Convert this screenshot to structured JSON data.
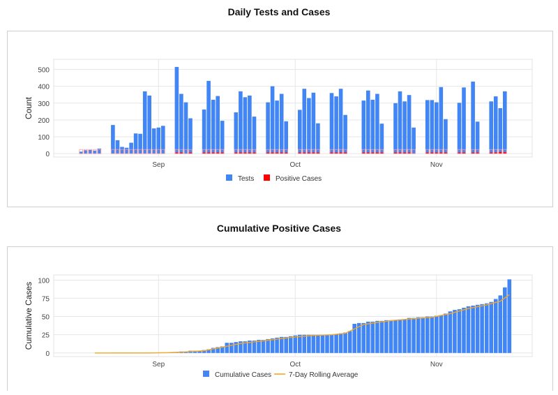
{
  "charts": [
    {
      "title": "Daily Tests and Cases"
    },
    {
      "title": "Cumulative Positive Cases"
    }
  ],
  "chart_data": [
    {
      "type": "bar",
      "title": "Daily Tests and Cases",
      "xlabel": "",
      "ylabel": "Count",
      "ylim": [
        -20,
        560
      ],
      "yticks": [
        0,
        100,
        200,
        300,
        400,
        500
      ],
      "x_tick_labels": [
        {
          "label": "Sep",
          "day": 22
        },
        {
          "label": "Oct",
          "day": 52
        },
        {
          "label": "Nov",
          "day": 83
        }
      ],
      "grid": true,
      "legend_position": "bottom",
      "series": [
        {
          "name": "Tests",
          "color": "#4285F4",
          "values": [
            [
              5,
              12
            ],
            [
              6,
              20
            ],
            [
              7,
              22
            ],
            [
              8,
              18
            ],
            [
              9,
              30
            ],
            [
              12,
              170
            ],
            [
              13,
              80
            ],
            [
              14,
              40
            ],
            [
              15,
              35
            ],
            [
              16,
              65
            ],
            [
              17,
              120
            ],
            [
              18,
              118
            ],
            [
              19,
              370
            ],
            [
              20,
              345
            ],
            [
              21,
              150
            ],
            [
              22,
              155
            ],
            [
              23,
              165
            ],
            [
              26,
              515
            ],
            [
              27,
              355
            ],
            [
              28,
              305
            ],
            [
              29,
              210
            ],
            [
              32,
              262
            ],
            [
              33,
              432
            ],
            [
              34,
              320
            ],
            [
              35,
              342
            ],
            [
              36,
              195
            ],
            [
              39,
              245
            ],
            [
              40,
              370
            ],
            [
              41,
              335
            ],
            [
              42,
              345
            ],
            [
              43,
              220
            ],
            [
              46,
              305
            ],
            [
              47,
              400
            ],
            [
              48,
              315
            ],
            [
              49,
              355
            ],
            [
              50,
              192
            ],
            [
              53,
              260
            ],
            [
              54,
              385
            ],
            [
              55,
              330
            ],
            [
              56,
              362
            ],
            [
              57,
              180
            ],
            [
              60,
              360
            ],
            [
              61,
              340
            ],
            [
              62,
              385
            ],
            [
              63,
              230
            ],
            [
              67,
              315
            ],
            [
              68,
              375
            ],
            [
              69,
              320
            ],
            [
              70,
              355
            ],
            [
              71,
              178
            ],
            [
              74,
              300
            ],
            [
              75,
              370
            ],
            [
              76,
              310
            ],
            [
              77,
              348
            ],
            [
              78,
              155
            ],
            [
              81,
              318
            ],
            [
              82,
              318
            ],
            [
              83,
              305
            ],
            [
              84,
              395
            ],
            [
              85,
              205
            ],
            [
              88,
              302
            ],
            [
              89,
              393
            ],
            [
              91,
              428
            ],
            [
              92,
              190
            ],
            [
              95,
              310
            ],
            [
              96,
              340
            ],
            [
              97,
              270
            ],
            [
              98,
              370
            ]
          ]
        },
        {
          "name": "Positive Cases",
          "color": "#FF0000",
          "values": [
            [
              5,
              0
            ],
            [
              6,
              0
            ],
            [
              7,
              0
            ],
            [
              8,
              0
            ],
            [
              9,
              0
            ],
            [
              12,
              0
            ],
            [
              13,
              0
            ],
            [
              14,
              0
            ],
            [
              15,
              0
            ],
            [
              16,
              0
            ],
            [
              17,
              0
            ],
            [
              18,
              0
            ],
            [
              19,
              0
            ],
            [
              20,
              0
            ],
            [
              21,
              0
            ],
            [
              22,
              0
            ],
            [
              23,
              0
            ],
            [
              26,
              1
            ],
            [
              27,
              1
            ],
            [
              28,
              0
            ],
            [
              29,
              1
            ],
            [
              32,
              1
            ],
            [
              33,
              1
            ],
            [
              34,
              2
            ],
            [
              35,
              1
            ],
            [
              36,
              1
            ],
            [
              39,
              1
            ],
            [
              40,
              1
            ],
            [
              41,
              1
            ],
            [
              42,
              2
            ],
            [
              43,
              1
            ],
            [
              46,
              1
            ],
            [
              47,
              1
            ],
            [
              48,
              1
            ],
            [
              49,
              1
            ],
            [
              50,
              1
            ],
            [
              53,
              1
            ],
            [
              54,
              1
            ],
            [
              55,
              1
            ],
            [
              56,
              1
            ],
            [
              57,
              1
            ],
            [
              60,
              1
            ],
            [
              61,
              1
            ],
            [
              62,
              6
            ],
            [
              63,
              3
            ],
            [
              67,
              1
            ],
            [
              68,
              2
            ],
            [
              69,
              1
            ],
            [
              70,
              1
            ],
            [
              71,
              1
            ],
            [
              74,
              1
            ],
            [
              75,
              1
            ],
            [
              76,
              1
            ],
            [
              77,
              1
            ],
            [
              78,
              0
            ],
            [
              81,
              1
            ],
            [
              82,
              2
            ],
            [
              83,
              3
            ],
            [
              84,
              4
            ],
            [
              85,
              1
            ],
            [
              88,
              1
            ],
            [
              89,
              2
            ],
            [
              91,
              1
            ],
            [
              92,
              1
            ],
            [
              95,
              2
            ],
            [
              96,
              5
            ],
            [
              97,
              10
            ],
            [
              98,
              8
            ]
          ]
        }
      ]
    },
    {
      "type": "bar",
      "title": "Cumulative Positive Cases",
      "xlabel": "",
      "ylabel": "Cumulative Cases",
      "ylim": [
        -5,
        107
      ],
      "yticks": [
        0,
        25,
        50,
        75,
        100
      ],
      "x_tick_labels": [
        {
          "label": "Sep",
          "day": 22
        },
        {
          "label": "Oct",
          "day": 52
        },
        {
          "label": "Nov",
          "day": 83
        }
      ],
      "grid": true,
      "legend_position": "bottom",
      "series": [
        {
          "name": "Cumulative Cases",
          "color": "#4285F4",
          "values": [
            [
              12,
              0
            ],
            [
              13,
              0
            ],
            [
              14,
              0
            ],
            [
              15,
              0
            ],
            [
              16,
              0
            ],
            [
              17,
              0
            ],
            [
              18,
              0
            ],
            [
              19,
              0
            ],
            [
              20,
              0
            ],
            [
              21,
              0
            ],
            [
              22,
              0
            ],
            [
              23,
              0
            ],
            [
              24,
              0
            ],
            [
              25,
              0
            ],
            [
              26,
              1
            ],
            [
              27,
              2
            ],
            [
              28,
              2
            ],
            [
              29,
              3
            ],
            [
              30,
              3
            ],
            [
              31,
              3
            ],
            [
              32,
              4
            ],
            [
              33,
              5
            ],
            [
              34,
              7
            ],
            [
              35,
              8
            ],
            [
              36,
              9
            ],
            [
              37,
              14
            ],
            [
              38,
              14
            ],
            [
              39,
              15
            ],
            [
              40,
              16
            ],
            [
              41,
              16
            ],
            [
              42,
              17
            ],
            [
              43,
              17
            ],
            [
              44,
              18
            ],
            [
              45,
              18
            ],
            [
              46,
              19
            ],
            [
              47,
              20
            ],
            [
              48,
              21
            ],
            [
              49,
              22
            ],
            [
              50,
              22
            ],
            [
              51,
              23
            ],
            [
              52,
              24
            ],
            [
              53,
              25
            ],
            [
              54,
              25
            ],
            [
              55,
              25
            ],
            [
              56,
              25
            ],
            [
              57,
              25
            ],
            [
              58,
              25
            ],
            [
              59,
              25
            ],
            [
              60,
              25
            ],
            [
              61,
              26
            ],
            [
              62,
              27
            ],
            [
              63,
              28
            ],
            [
              64,
              30
            ],
            [
              65,
              40
            ],
            [
              66,
              41
            ],
            [
              67,
              41
            ],
            [
              68,
              43
            ],
            [
              69,
              43
            ],
            [
              70,
              44
            ],
            [
              71,
              44
            ],
            [
              72,
              45
            ],
            [
              73,
              45
            ],
            [
              74,
              45
            ],
            [
              75,
              46
            ],
            [
              76,
              46
            ],
            [
              77,
              48
            ],
            [
              78,
              48
            ],
            [
              79,
              49
            ],
            [
              80,
              49
            ],
            [
              81,
              50
            ],
            [
              82,
              50
            ],
            [
              83,
              51
            ],
            [
              84,
              52
            ],
            [
              85,
              54
            ],
            [
              86,
              57
            ],
            [
              87,
              59
            ],
            [
              88,
              60
            ],
            [
              89,
              62
            ],
            [
              90,
              64
            ],
            [
              91,
              65
            ],
            [
              92,
              66
            ],
            [
              93,
              67
            ],
            [
              94,
              68
            ],
            [
              95,
              70
            ],
            [
              96,
              74
            ],
            [
              97,
              79
            ],
            [
              98,
              90
            ],
            [
              99,
              101
            ]
          ]
        },
        {
          "name": "7-Day Rolling Average",
          "color": "#F5A623",
          "values": [
            [
              8,
              0
            ],
            [
              12,
              0
            ],
            [
              16,
              0
            ],
            [
              20,
              0
            ],
            [
              24,
              0.5
            ],
            [
              28,
              1.5
            ],
            [
              32,
              3
            ],
            [
              36,
              8
            ],
            [
              40,
              13
            ],
            [
              44,
              16
            ],
            [
              48,
              19
            ],
            [
              52,
              22
            ],
            [
              56,
              24
            ],
            [
              60,
              25
            ],
            [
              63,
              27
            ],
            [
              65,
              33
            ],
            [
              67,
              39
            ],
            [
              70,
              42
            ],
            [
              74,
              45
            ],
            [
              78,
              47
            ],
            [
              82,
              49
            ],
            [
              86,
              54
            ],
            [
              90,
              61
            ],
            [
              94,
              66
            ],
            [
              97,
              71
            ],
            [
              99,
              80
            ]
          ]
        }
      ]
    }
  ]
}
